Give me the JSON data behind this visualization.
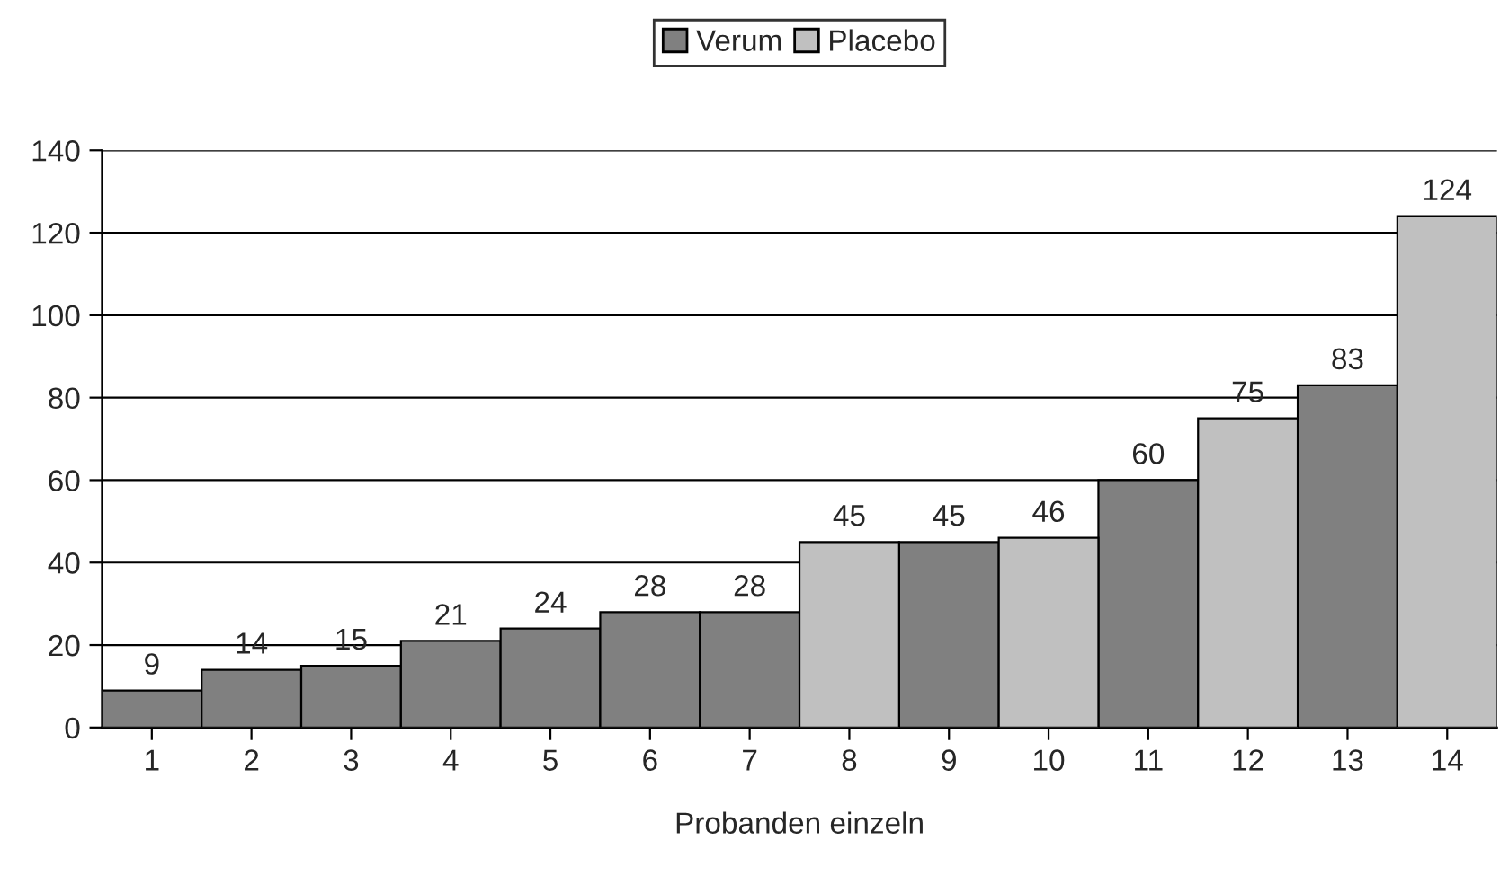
{
  "chart_data": {
    "type": "bar",
    "xlabel": "Probanden einzeln",
    "categories": [
      "1",
      "2",
      "3",
      "4",
      "5",
      "6",
      "7",
      "8",
      "9",
      "10",
      "11",
      "12",
      "13",
      "14"
    ],
    "series": [
      {
        "name": "Verum",
        "color": "#808080",
        "values": [
          9,
          14,
          15,
          21,
          24,
          28,
          28,
          null,
          45,
          null,
          60,
          null,
          83,
          null
        ]
      },
      {
        "name": "Placebo",
        "color": "#c0c0c0",
        "values": [
          null,
          null,
          null,
          null,
          null,
          null,
          null,
          45,
          null,
          46,
          null,
          75,
          null,
          124
        ]
      }
    ],
    "ylim": [
      0,
      140
    ],
    "yticks": [
      0,
      20,
      40,
      60,
      80,
      100,
      120,
      140
    ],
    "grid": "y",
    "legend": "top",
    "data_labels": true
  }
}
